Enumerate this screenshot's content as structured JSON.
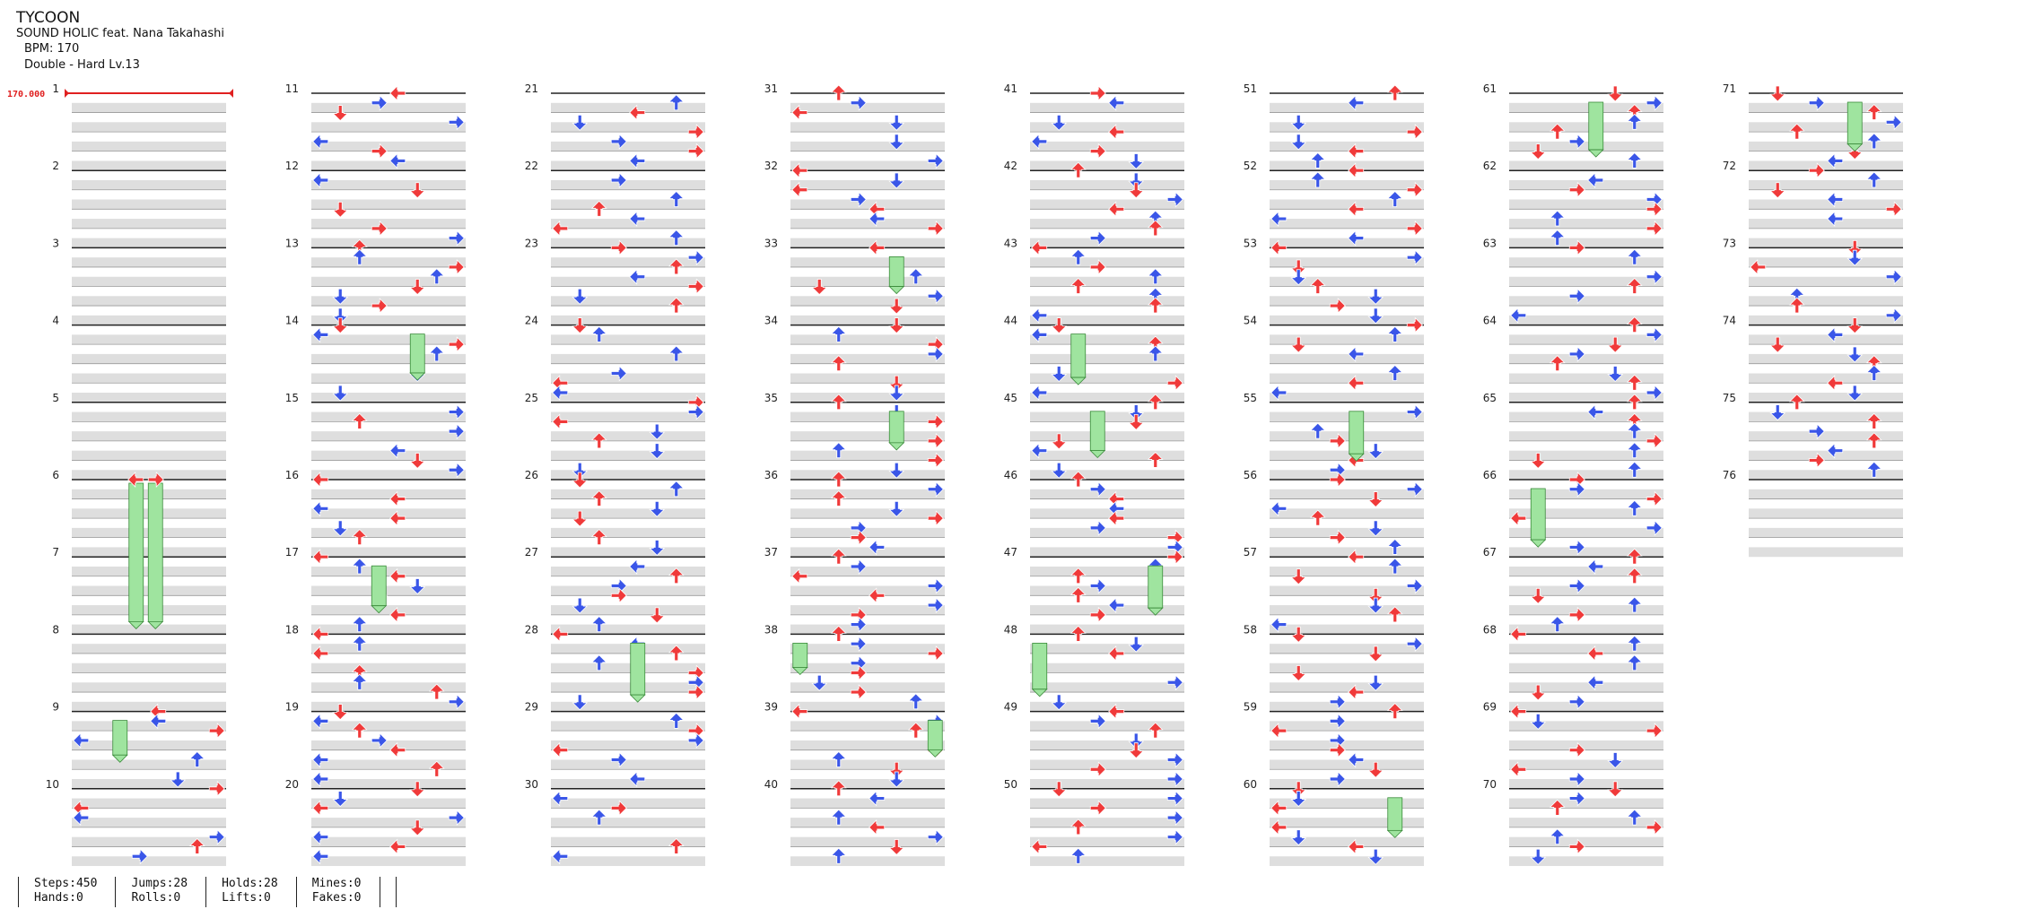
{
  "song": {
    "title": "TYCOON",
    "artist": "SOUND HOLIC feat. Nana Takahashi",
    "bpm_text": "BPM: 170",
    "difficulty_text": "Double - Hard  Lv.13"
  },
  "chart_data": {
    "type": "table",
    "title": "TYCOON",
    "style": "Double",
    "difficulty": "Hard",
    "level": 13,
    "bpm_marker": {
      "measure": 1,
      "label": "170.000"
    },
    "measures": [
      "1",
      "2",
      "3",
      "4",
      "5",
      "6",
      "7",
      "8",
      "9",
      "10",
      "11",
      "12",
      "13",
      "14",
      "15",
      "16",
      "17",
      "18",
      "19",
      "20",
      "21",
      "22",
      "23",
      "24",
      "25",
      "26",
      "27",
      "28",
      "29",
      "30",
      "31",
      "32",
      "33",
      "34",
      "35",
      "36",
      "37",
      "38",
      "39",
      "40",
      "41",
      "42",
      "43",
      "44",
      "45",
      "46",
      "47",
      "48",
      "49",
      "50",
      "51",
      "52",
      "53",
      "54",
      "55",
      "56",
      "57",
      "58",
      "59",
      "60",
      "61",
      "62",
      "63",
      "64",
      "65",
      "66",
      "67",
      "68",
      "69",
      "70",
      "71",
      "72",
      "73",
      "74",
      "75",
      "76"
    ],
    "stats": {
      "steps": 450,
      "jumps": 28,
      "holds": 28,
      "mines": 0,
      "hands": 0,
      "rolls": 0,
      "lifts": 0,
      "fakes": 0
    }
  },
  "stats": {
    "steps_label": "Steps:450",
    "hands_label": "Hands:0",
    "jumps_label": "Jumps:28",
    "rolls_label": "Rolls:0",
    "holds_label": "Holds:28",
    "lifts_label": "Lifts:0",
    "mines_label": "Mines:0",
    "fakes_label": "Fakes:0"
  },
  "colors": {
    "quarter_note": "#f03a3a",
    "eighth_note": "#3a56e8",
    "sixteenth_note": "#f2d23a",
    "twelfth_note": "#a040e0",
    "hold_body": "#9fe49f",
    "bpm_marker": "#e02020",
    "band_gray": "#dedede"
  },
  "icons": {
    "arrow": "arrow-icon",
    "hold": "hold-note-icon"
  }
}
